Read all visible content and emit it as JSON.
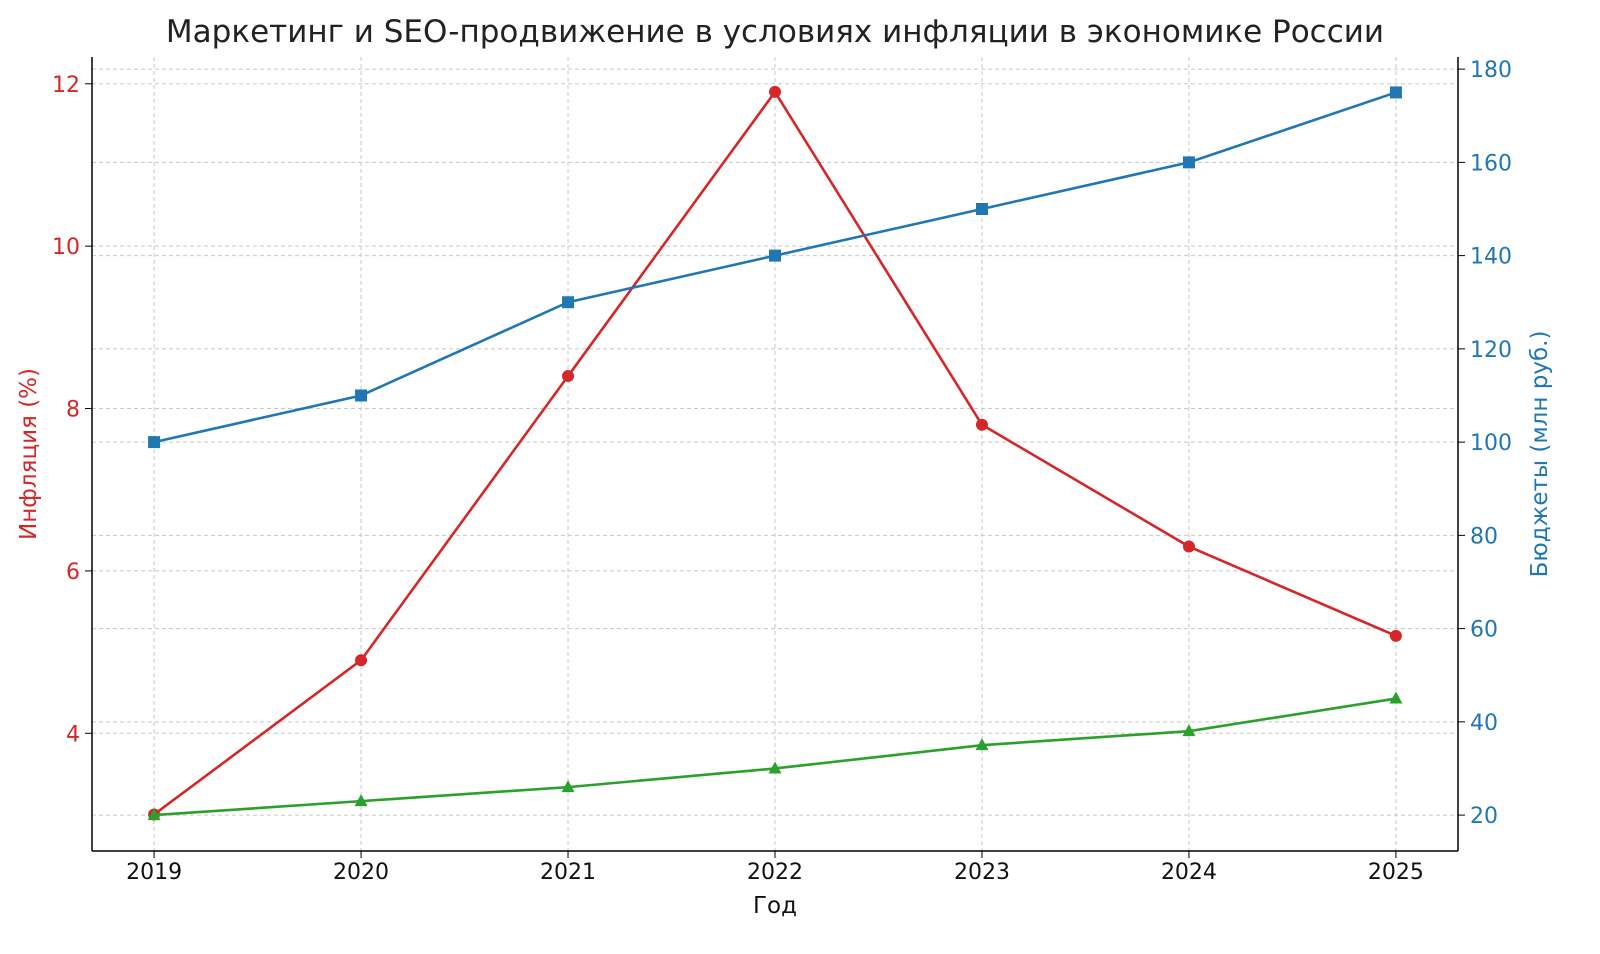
{
  "chart_data": {
    "type": "line",
    "title": "Маркетинг и SEO-продвижение в условиях инфляции в экономике России",
    "xlabel": "Год",
    "ylabel_left": "Инфляция (%)",
    "ylabel_right": "Бюджеты (млн руб.)",
    "x": [
      2019,
      2020,
      2021,
      2022,
      2023,
      2024,
      2025
    ],
    "xlim": [
      2018.7,
      2025.3
    ],
    "ylim_left": [
      2.55,
      12.33
    ],
    "ylim_right": [
      12.3,
      182.6
    ],
    "yticks_left": [
      4,
      6,
      8,
      10,
      12
    ],
    "yticks_right": [
      20,
      40,
      60,
      80,
      100,
      120,
      140,
      160,
      180
    ],
    "grid": true,
    "legend": "none",
    "colors": {
      "left_axis": "#d62728",
      "right_axis": "#1f77b4"
    },
    "series": [
      {
        "axis": "left",
        "color": "#d62728",
        "marker": "circle",
        "values": [
          3.0,
          4.9,
          8.4,
          11.9,
          7.8,
          6.3,
          5.2
        ]
      },
      {
        "axis": "right",
        "color": "#1f77b4",
        "marker": "square",
        "values": [
          100,
          110,
          130,
          140,
          150,
          160,
          175
        ]
      },
      {
        "axis": "right",
        "color": "#2ca02c",
        "marker": "triangle",
        "values": [
          20,
          23,
          26,
          30,
          35,
          38,
          45
        ]
      }
    ]
  }
}
